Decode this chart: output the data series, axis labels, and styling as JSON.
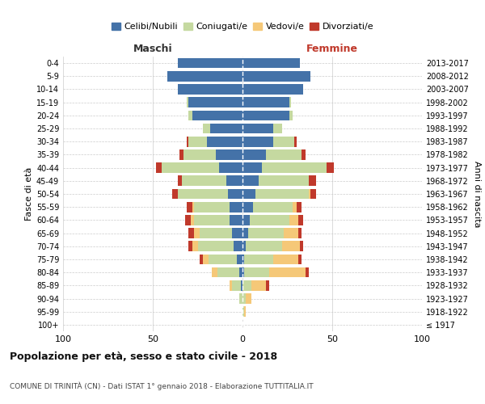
{
  "age_groups": [
    "100+",
    "95-99",
    "90-94",
    "85-89",
    "80-84",
    "75-79",
    "70-74",
    "65-69",
    "60-64",
    "55-59",
    "50-54",
    "45-49",
    "40-44",
    "35-39",
    "30-34",
    "25-29",
    "20-24",
    "15-19",
    "10-14",
    "5-9",
    "0-4"
  ],
  "birth_years": [
    "≤ 1917",
    "1918-1922",
    "1923-1927",
    "1928-1932",
    "1933-1937",
    "1938-1942",
    "1943-1947",
    "1948-1952",
    "1953-1957",
    "1958-1962",
    "1963-1967",
    "1968-1972",
    "1973-1977",
    "1978-1982",
    "1983-1987",
    "1988-1992",
    "1993-1997",
    "1998-2002",
    "2003-2007",
    "2008-2012",
    "2013-2017"
  ],
  "colors": {
    "celibi": "#4472a8",
    "coniugati": "#c5d9a0",
    "vedovi": "#f5c878",
    "divorziati": "#c0392b"
  },
  "maschi_celibi": [
    0,
    0,
    0,
    1,
    2,
    3,
    5,
    6,
    7,
    7,
    8,
    9,
    13,
    15,
    20,
    18,
    28,
    30,
    36,
    42,
    36
  ],
  "maschi_coniugati": [
    0,
    0,
    2,
    5,
    12,
    16,
    20,
    18,
    20,
    20,
    28,
    25,
    32,
    18,
    10,
    4,
    2,
    1,
    0,
    0,
    0
  ],
  "maschi_vedovi": [
    0,
    0,
    0,
    1,
    3,
    3,
    3,
    3,
    2,
    1,
    0,
    0,
    0,
    0,
    0,
    0,
    0,
    0,
    0,
    0,
    0
  ],
  "maschi_divorziati": [
    0,
    0,
    0,
    0,
    0,
    2,
    2,
    3,
    3,
    3,
    3,
    2,
    3,
    2,
    1,
    0,
    0,
    0,
    0,
    0,
    0
  ],
  "femmine_nubili": [
    0,
    0,
    0,
    0,
    1,
    1,
    2,
    3,
    4,
    6,
    7,
    9,
    11,
    13,
    17,
    17,
    26,
    26,
    34,
    38,
    32
  ],
  "femmine_coniugate": [
    0,
    1,
    2,
    5,
    14,
    16,
    20,
    20,
    22,
    22,
    30,
    28,
    36,
    20,
    12,
    5,
    2,
    1,
    0,
    0,
    0
  ],
  "femmine_vedove": [
    0,
    1,
    3,
    8,
    20,
    14,
    10,
    8,
    5,
    2,
    1,
    0,
    0,
    0,
    0,
    0,
    0,
    0,
    0,
    0,
    0
  ],
  "femmine_divorziate": [
    0,
    0,
    0,
    2,
    2,
    2,
    2,
    2,
    3,
    3,
    3,
    4,
    4,
    2,
    1,
    0,
    0,
    0,
    0,
    0,
    0
  ],
  "title": "Popolazione per età, sesso e stato civile - 2018",
  "subtitle": "COMUNE DI TRINITÀ (CN) - Dati ISTAT 1° gennaio 2018 - Elaborazione TUTTITALIA.IT",
  "ylabel_left": "Fasce di età",
  "ylabel_right": "Anni di nascita",
  "xlabel_left": "Maschi",
  "xlabel_right": "Femmine",
  "xlim": 100,
  "legend_labels": [
    "Celibi/Nubili",
    "Coniugati/e",
    "Vedovi/e",
    "Divorziati/e"
  ],
  "background_color": "#ffffff",
  "grid_color": "#cccccc"
}
